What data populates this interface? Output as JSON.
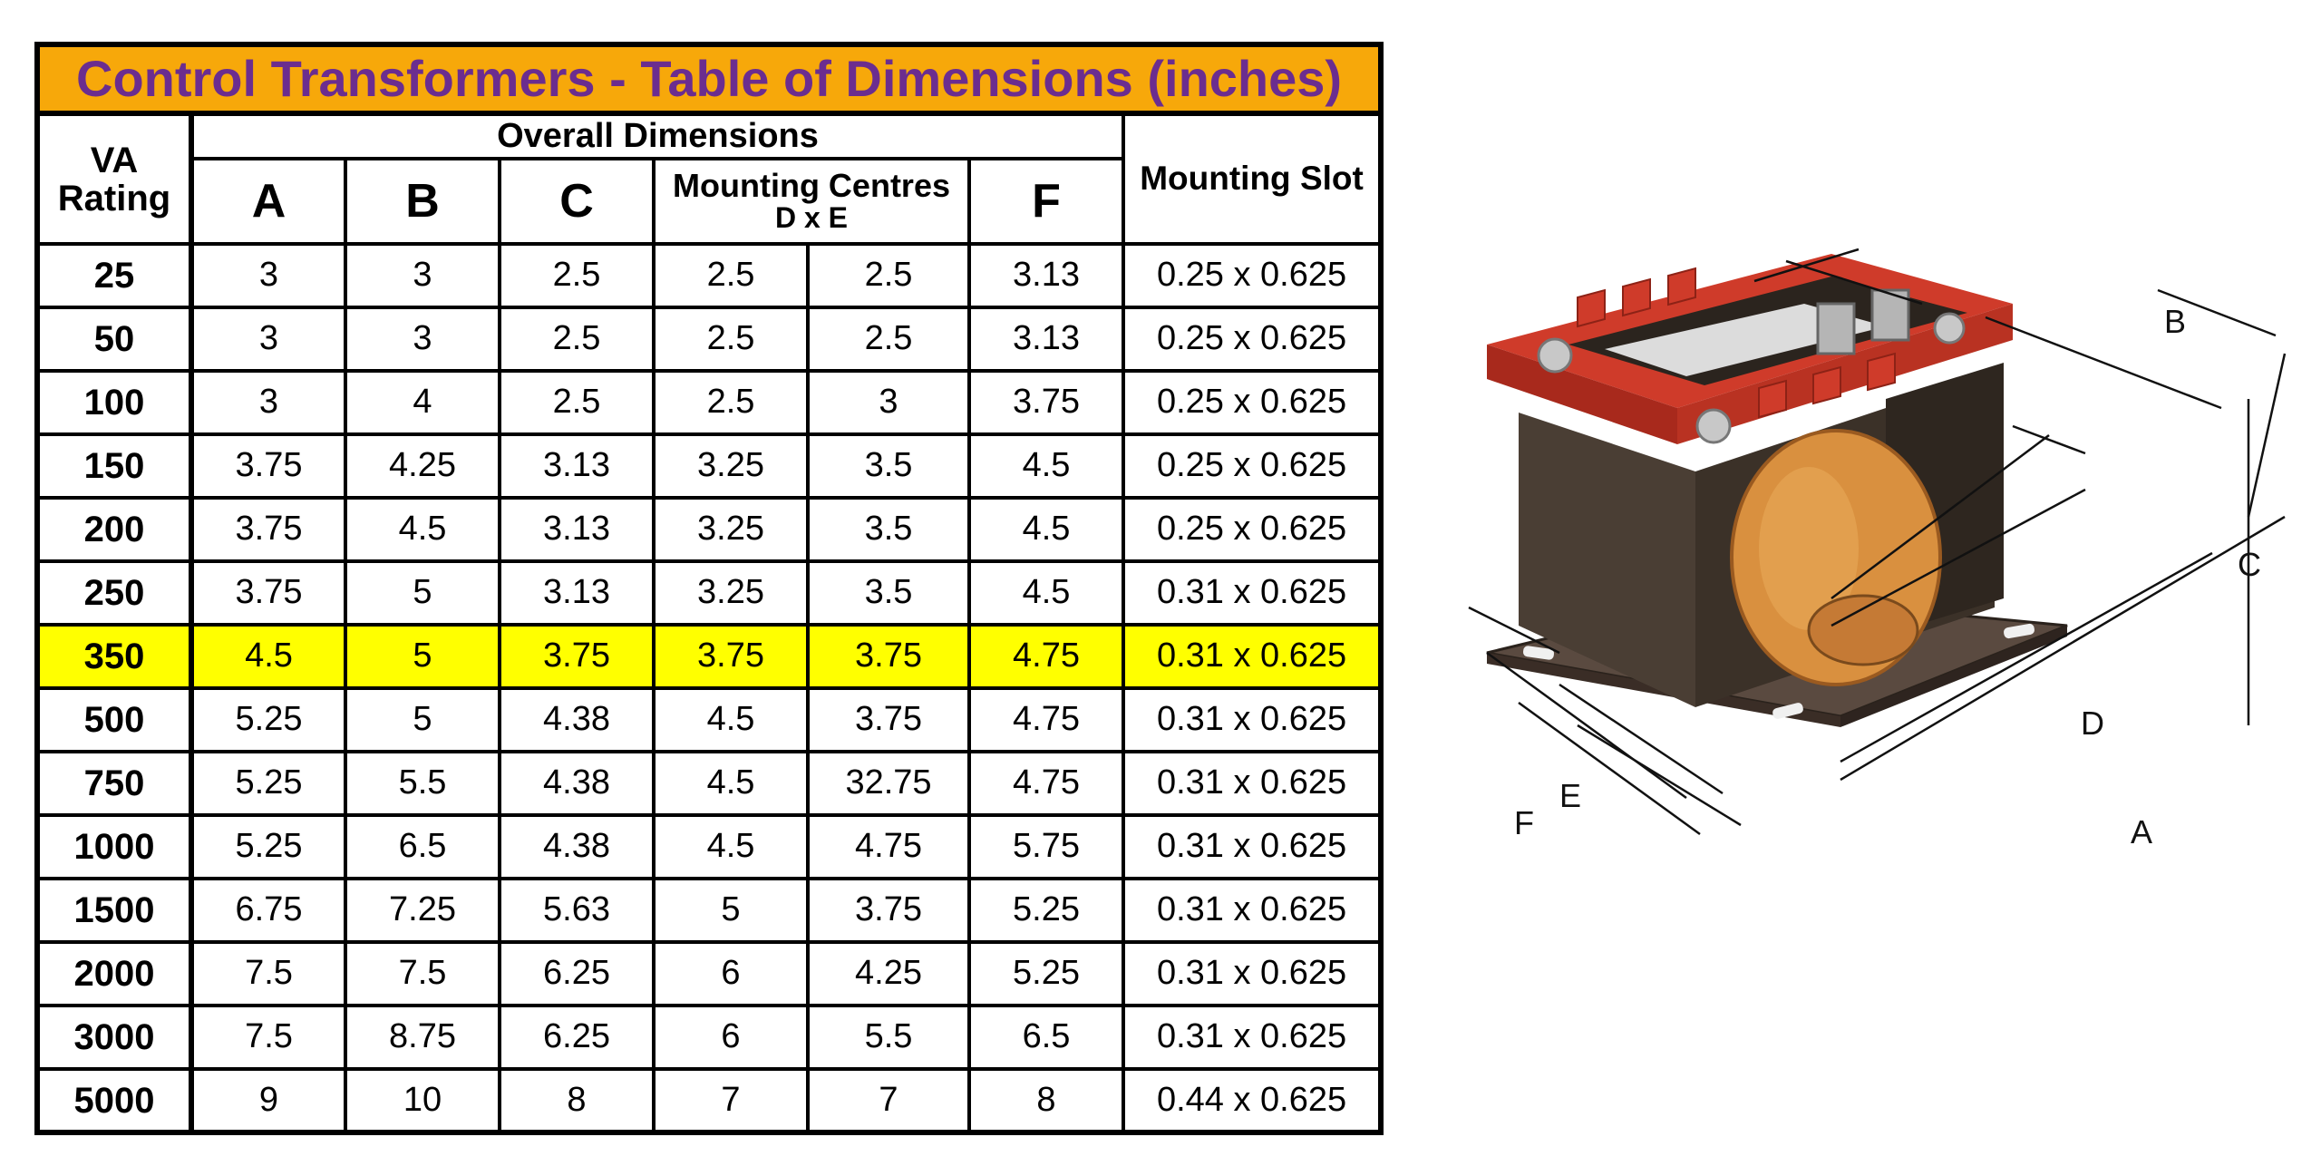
{
  "table": {
    "title": "Control Transformers - Table of Dimensions (inches)",
    "va_header_line1": "VA",
    "va_header_line2": "Rating",
    "overall_header": "Overall Dimensions",
    "col_a": "A",
    "col_b": "B",
    "col_c": "C",
    "mounting_centres_line1": "Mounting Centres",
    "mounting_centres_line2": "D x E",
    "col_f": "F",
    "mounting_slot_header": "Mounting Slot",
    "highlight_color": "#ffff00",
    "title_bg_color": "#f7a80a",
    "title_text_color": "#6b2d8f",
    "rows": [
      {
        "va": "25",
        "a": "3",
        "b": "3",
        "c": "2.5",
        "d": "2.5",
        "e": "2.5",
        "f": "3.13",
        "slot": "0.25 x 0.625"
      },
      {
        "va": "50",
        "a": "3",
        "b": "3",
        "c": "2.5",
        "d": "2.5",
        "e": "2.5",
        "f": "3.13",
        "slot": "0.25 x 0.625"
      },
      {
        "va": "100",
        "a": "3",
        "b": "4",
        "c": "2.5",
        "d": "2.5",
        "e": "3",
        "f": "3.75",
        "slot": "0.25 x 0.625"
      },
      {
        "va": "150",
        "a": "3.75",
        "b": "4.25",
        "c": "3.13",
        "d": "3.25",
        "e": "3.5",
        "f": "4.5",
        "slot": "0.25 x 0.625"
      },
      {
        "va": "200",
        "a": "3.75",
        "b": "4.5",
        "c": "3.13",
        "d": "3.25",
        "e": "3.5",
        "f": "4.5",
        "slot": "0.25 x 0.625"
      },
      {
        "va": "250",
        "a": "3.75",
        "b": "5",
        "c": "3.13",
        "d": "3.25",
        "e": "3.5",
        "f": "4.5",
        "slot": "0.31 x 0.625"
      },
      {
        "va": "350",
        "a": "4.5",
        "b": "5",
        "c": "3.75",
        "d": "3.75",
        "e": "3.75",
        "f": "4.75",
        "slot": "0.31 x 0.625",
        "highlighted": true
      },
      {
        "va": "500",
        "a": "5.25",
        "b": "5",
        "c": "4.38",
        "d": "4.5",
        "e": "3.75",
        "f": "4.75",
        "slot": "0.31 x 0.625"
      },
      {
        "va": "750",
        "a": "5.25",
        "b": "5.5",
        "c": "4.38",
        "d": "4.5",
        "e": "32.75",
        "f": "4.75",
        "slot": "0.31 x 0.625"
      },
      {
        "va": "1000",
        "a": "5.25",
        "b": "6.5",
        "c": "4.38",
        "d": "4.5",
        "e": "4.75",
        "f": "5.75",
        "slot": "0.31 x 0.625"
      },
      {
        "va": "1500",
        "a": "6.75",
        "b": "7.25",
        "c": "5.63",
        "d": "5",
        "e": "3.75",
        "f": "5.25",
        "slot": "0.31 x 0.625"
      },
      {
        "va": "2000",
        "a": "7.5",
        "b": "7.5",
        "c": "6.25",
        "d": "6",
        "e": "4.25",
        "f": "5.25",
        "slot": "0.31 x 0.625"
      },
      {
        "va": "3000",
        "a": "7.5",
        "b": "8.75",
        "c": "6.25",
        "d": "6",
        "e": "5.5",
        "f": "6.5",
        "slot": "0.31 x 0.625"
      },
      {
        "va": "5000",
        "a": "9",
        "b": "10",
        "c": "8",
        "d": "7",
        "e": "7",
        "f": "8",
        "slot": "0.44 x 0.625"
      }
    ]
  },
  "diagram": {
    "label_a": "A",
    "label_b": "B",
    "label_c": "C",
    "label_d": "D",
    "label_e": "E",
    "label_f": "F",
    "frame_color": "#cf3b2a",
    "core_color": "#3b3128",
    "coil_color": "#d9903f",
    "base_color": "#4a3a32"
  }
}
